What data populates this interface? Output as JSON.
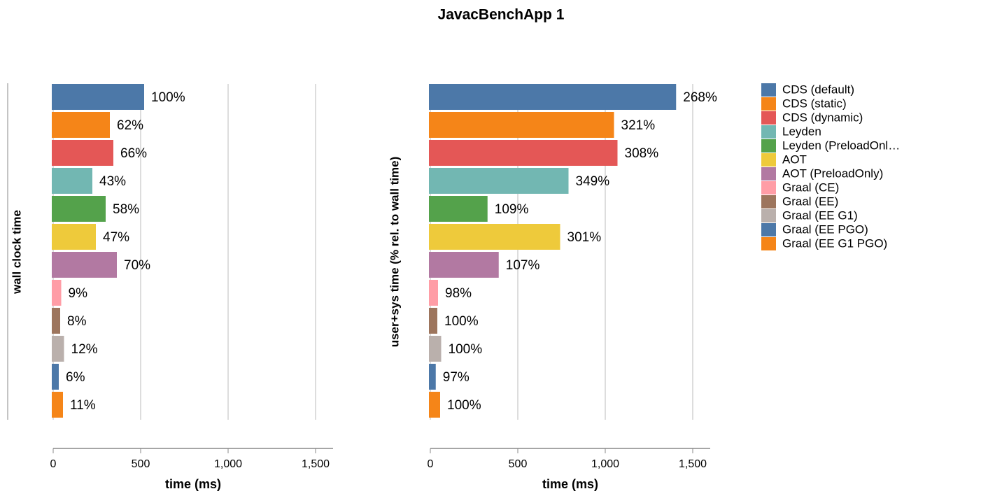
{
  "title": "JavacBenchApp 1",
  "legend": {
    "entries": [
      "CDS (default)",
      "CDS (static)",
      "CDS (dynamic)",
      "Leyden",
      "Leyden (PreloadOnl…",
      "AOT",
      "AOT (PreloadOnly)",
      "Graal (CE)",
      "Graal (EE)",
      "Graal (EE G1)",
      "Graal (EE PGO)",
      "Graal (EE G1 PGO)"
    ],
    "colors": [
      "#4c78a8",
      "#f58518",
      "#e45756",
      "#72b7b2",
      "#54a24b",
      "#eeca3b",
      "#b279a2",
      "#ff9da6",
      "#9d755d",
      "#bab0ac",
      "#4c78a8",
      "#f58518"
    ]
  },
  "chart_data": [
    {
      "type": "bar",
      "orientation": "horizontal",
      "ylabel": "wall clock time",
      "xlabel": "time (ms)",
      "xlim": [
        0,
        1600
      ],
      "xticks": [
        0,
        500,
        {
          "value": 1000,
          "label": "1,000"
        },
        {
          "value": 1500,
          "label": "1,500"
        }
      ],
      "grid": true,
      "values": [
        520,
        324,
        344,
        224,
        300,
        244,
        364,
        46,
        40,
        62,
        32,
        56
      ],
      "bar_texts": [
        "100%",
        "62%",
        "66%",
        "43%",
        "58%",
        "47%",
        "70%",
        "9%",
        "8%",
        "12%",
        "6%",
        "11%"
      ]
    },
    {
      "type": "bar",
      "orientation": "horizontal",
      "ylabel": "user+sys time (% rel. to wall time)",
      "xlabel": "time (ms)",
      "xlim": [
        0,
        1600
      ],
      "xticks": [
        0,
        500,
        {
          "value": 1000,
          "label": "1,000"
        },
        {
          "value": 1500,
          "label": "1,500"
        }
      ],
      "grid": true,
      "values": [
        1405,
        1050,
        1070,
        790,
        327,
        742,
        391,
        44,
        40,
        62,
        31,
        56
      ],
      "bar_texts": [
        "268%",
        "321%",
        "308%",
        "349%",
        "109%",
        "301%",
        "107%",
        "98%",
        "100%",
        "100%",
        "97%",
        "100%"
      ]
    }
  ]
}
